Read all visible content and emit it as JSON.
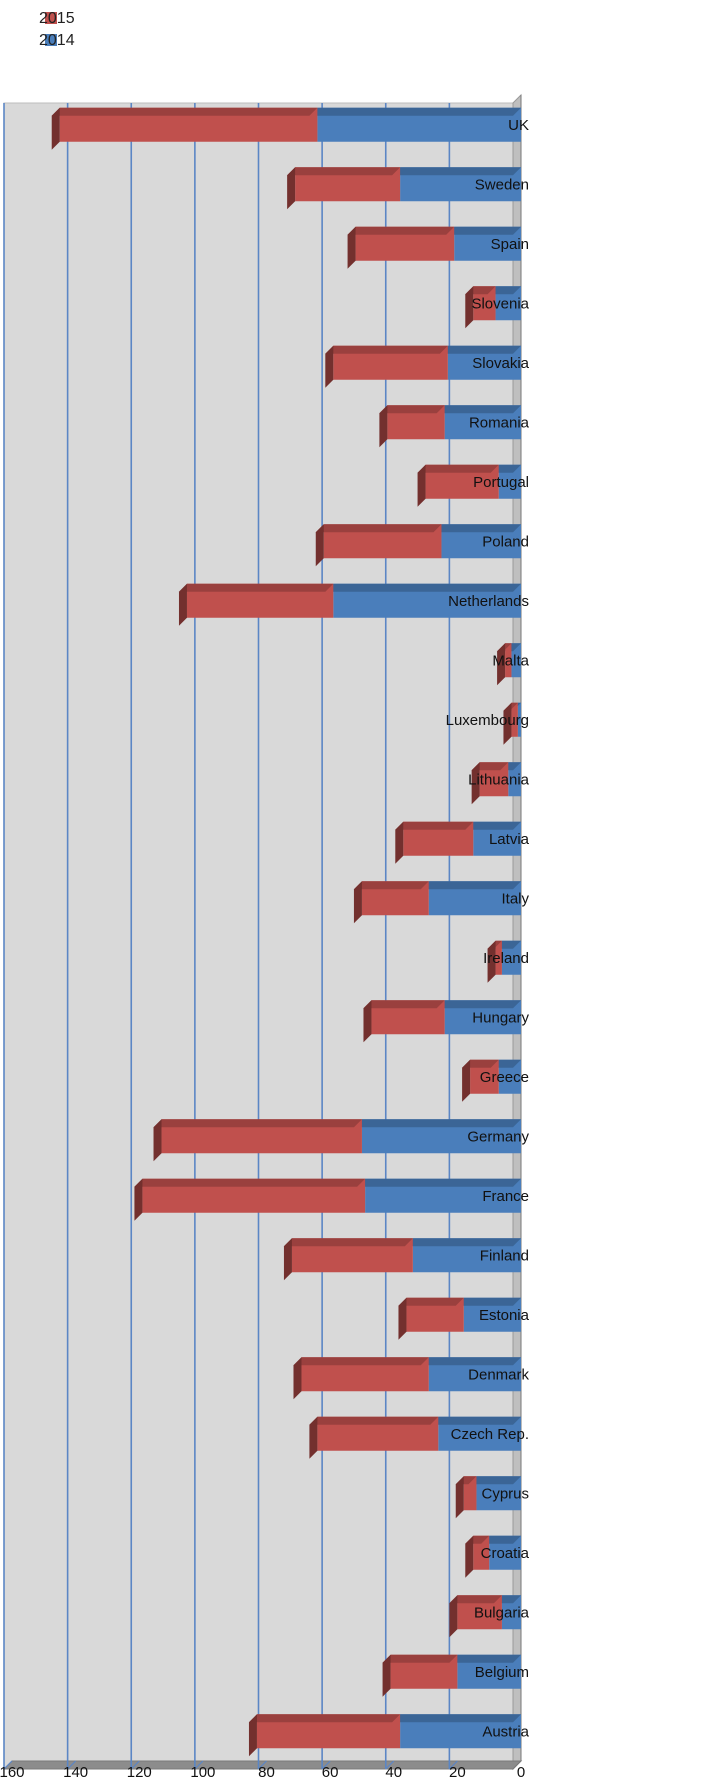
{
  "chart_data": {
    "type": "bar",
    "orientation": "horizontal",
    "stacked": true,
    "three_d": true,
    "rotated_180": true,
    "title": "",
    "xlabel": "",
    "ylabel": "",
    "xlim": [
      0,
      160
    ],
    "ticks": [
      "0",
      "20",
      "40",
      "60",
      "80",
      "100",
      "120",
      "140",
      "160"
    ],
    "grid": true,
    "legend_position": "top-right",
    "categories": [
      "Austria",
      "Belgium",
      "Bulgaria",
      "Croatia",
      "Cyprus",
      "Czech Rep.",
      "Denmark",
      "Estonia",
      "Finland",
      "France",
      "Germany",
      "Greece",
      "Hungary",
      "Ireland",
      "Italy",
      "Latvia",
      "Lithuania",
      "Luxembourg",
      "Malta",
      "Netherlands",
      "Poland",
      "Portugal",
      "Romania",
      "Slovakia",
      "Slovenia",
      "Spain",
      "Sweden",
      "UK"
    ],
    "series": [
      {
        "name": "2014",
        "color": "#4a7ebb",
        "values": [
          38,
          20,
          6,
          10,
          14,
          26,
          29,
          18,
          34,
          49,
          50,
          7,
          24,
          6,
          29,
          15,
          4,
          1,
          3,
          59,
          25,
          7,
          24,
          23,
          8,
          21,
          38,
          64
        ]
      },
      {
        "name": "2015",
        "color": "#c0504d",
        "values": [
          45,
          21,
          14,
          5,
          4,
          38,
          40,
          18,
          38,
          70,
          63,
          9,
          23,
          2,
          21,
          22,
          9,
          2,
          2,
          46,
          37,
          23,
          18,
          36,
          7,
          31,
          33,
          81
        ]
      }
    ]
  }
}
